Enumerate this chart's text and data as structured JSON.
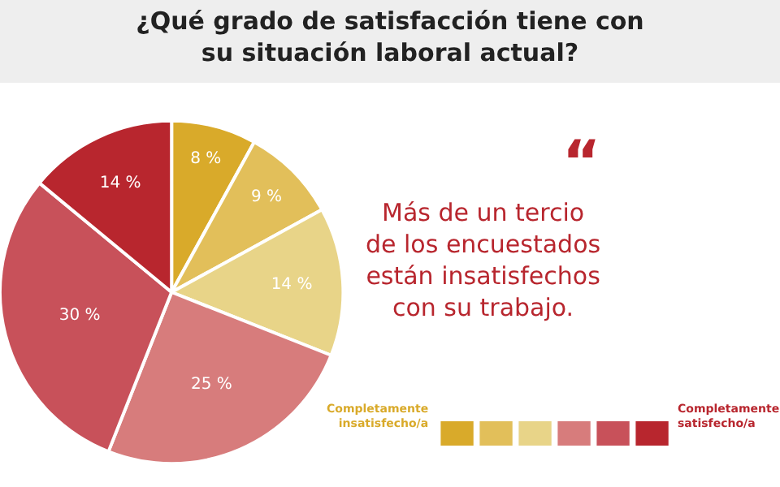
{
  "chart_data": {
    "type": "pie",
    "title": "¿Qué grado de satisfacción tiene con\nsu situación laboral actual?",
    "categories": [
      null,
      null,
      null,
      null,
      null,
      null
    ],
    "values": [
      8,
      9,
      14,
      25,
      30,
      14
    ],
    "value_labels": [
      "8 %",
      "9 %",
      "14 %",
      "25 %",
      "30 %",
      "14 %"
    ],
    "colors": [
      "#d9aa2a",
      "#e2bf5a",
      "#e8d488",
      "#d77c7c",
      "#c8515a",
      "#b8262e"
    ],
    "annotations": [
      "“",
      "Más de un tercio\nde los encuestados\nestán insatisfechos\ncon su trabajo.",
      "Completamente\ninsatisfecho/a",
      "Completamente\nsatisfecho/a"
    ]
  }
}
